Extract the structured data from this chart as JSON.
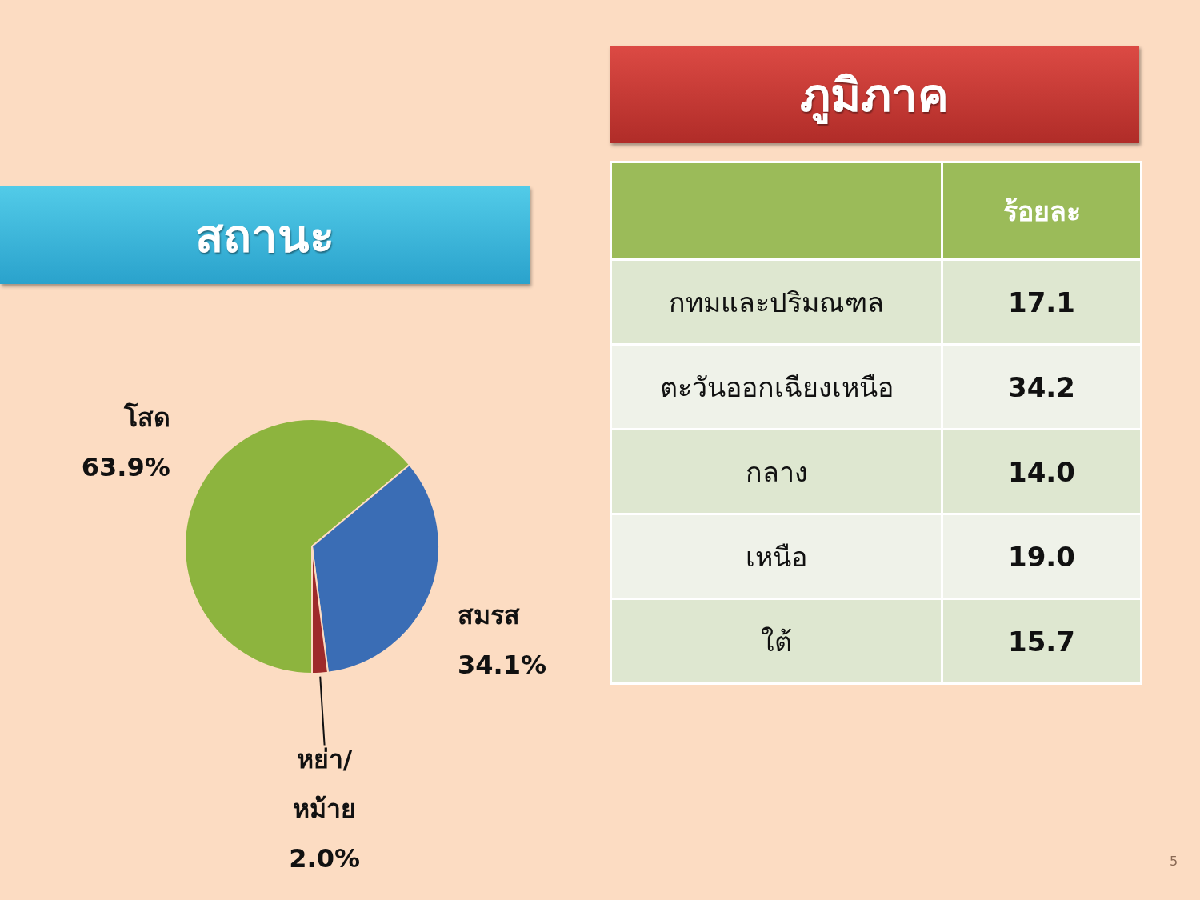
{
  "chart_data": [
    {
      "type": "pie",
      "title": "สถานะ",
      "categories": [
        "โสด",
        "สมรส",
        "หย่า/หม้าย"
      ],
      "values": [
        63.9,
        34.1,
        2.0
      ],
      "value_labels": [
        "63.9%",
        "34.1%",
        "2.0%"
      ],
      "colors": [
        "#8db43e",
        "#3a6db5",
        "#9e2a2b"
      ]
    },
    {
      "type": "other",
      "title": "ภูมิภาค",
      "ylabel": "ร้อยละ",
      "categories": [
        "กทมและปริมณฑล",
        "ตะวันออกเฉียงเหนือ",
        "กลาง",
        "เหนือ",
        "ใต้"
      ],
      "values": [
        17.1,
        34.2,
        14.0,
        19.0,
        15.7
      ],
      "value_labels": [
        "17.1",
        "34.2",
        "14.0",
        "19.0",
        "15.7"
      ],
      "annotations": [
        "5"
      ]
    }
  ]
}
